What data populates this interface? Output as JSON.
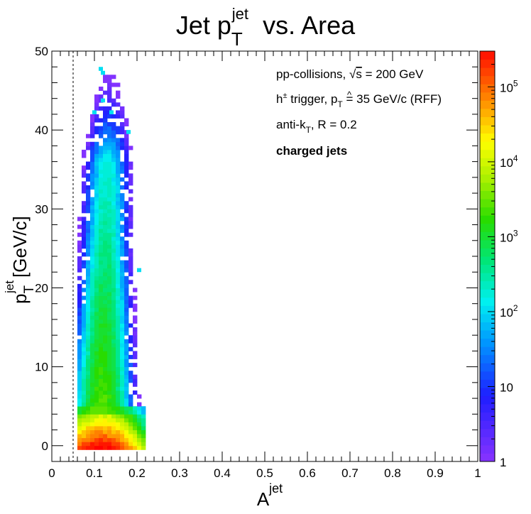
{
  "chart_data": {
    "type": "heatmap",
    "title": "Jet p",
    "title_sub": "T",
    "title_sup": "jet",
    "title_tail": "vs. Area",
    "xlabel": "A",
    "xlabel_sup": "jet",
    "ylabel": "p",
    "ylabel_sub": "T",
    "ylabel_sup": "jet",
    "ylabel_tail": "[GeV/c]",
    "xlim": [
      0,
      1
    ],
    "ylim": [
      -2,
      50
    ],
    "x_ticks": [
      "0",
      "0.1",
      "0.2",
      "0.3",
      "0.4",
      "0.5",
      "0.6",
      "0.7",
      "0.8",
      "0.9",
      "1"
    ],
    "y_ticks": [
      "0",
      "10",
      "20",
      "30",
      "40",
      "50"
    ],
    "z_scale": "log",
    "z_range": [
      1,
      300000
    ],
    "z_ticks": [
      {
        "value": 1,
        "label": "1",
        "sup": ""
      },
      {
        "value": 10,
        "label": "10",
        "sup": ""
      },
      {
        "value": 100,
        "label": "10",
        "sup": "2"
      },
      {
        "value": 1000,
        "label": "10",
        "sup": "3"
      },
      {
        "value": 10000,
        "label": "10",
        "sup": "4"
      },
      {
        "value": 100000,
        "label": "10",
        "sup": "5"
      }
    ],
    "cut_line_x": 0.05,
    "grid": false,
    "annotations": {
      "line1_prefix": "pp-collisions, ",
      "line1_sqrt": "√",
      "line1_s": "s",
      "line1_suffix": " = 200 GeV",
      "line2_prefix": "h",
      "line2_sup": "±",
      "line2_mid": " trigger, ",
      "line2_phat": "p",
      "line2_phat_sub": "T",
      "line2_suffix": " = 35 GeV/c (RFF)",
      "line3_prefix": "anti-k",
      "line3_sub": "T",
      "line3_suffix": ", R = 0.2",
      "line4": "charged jets"
    }
  }
}
